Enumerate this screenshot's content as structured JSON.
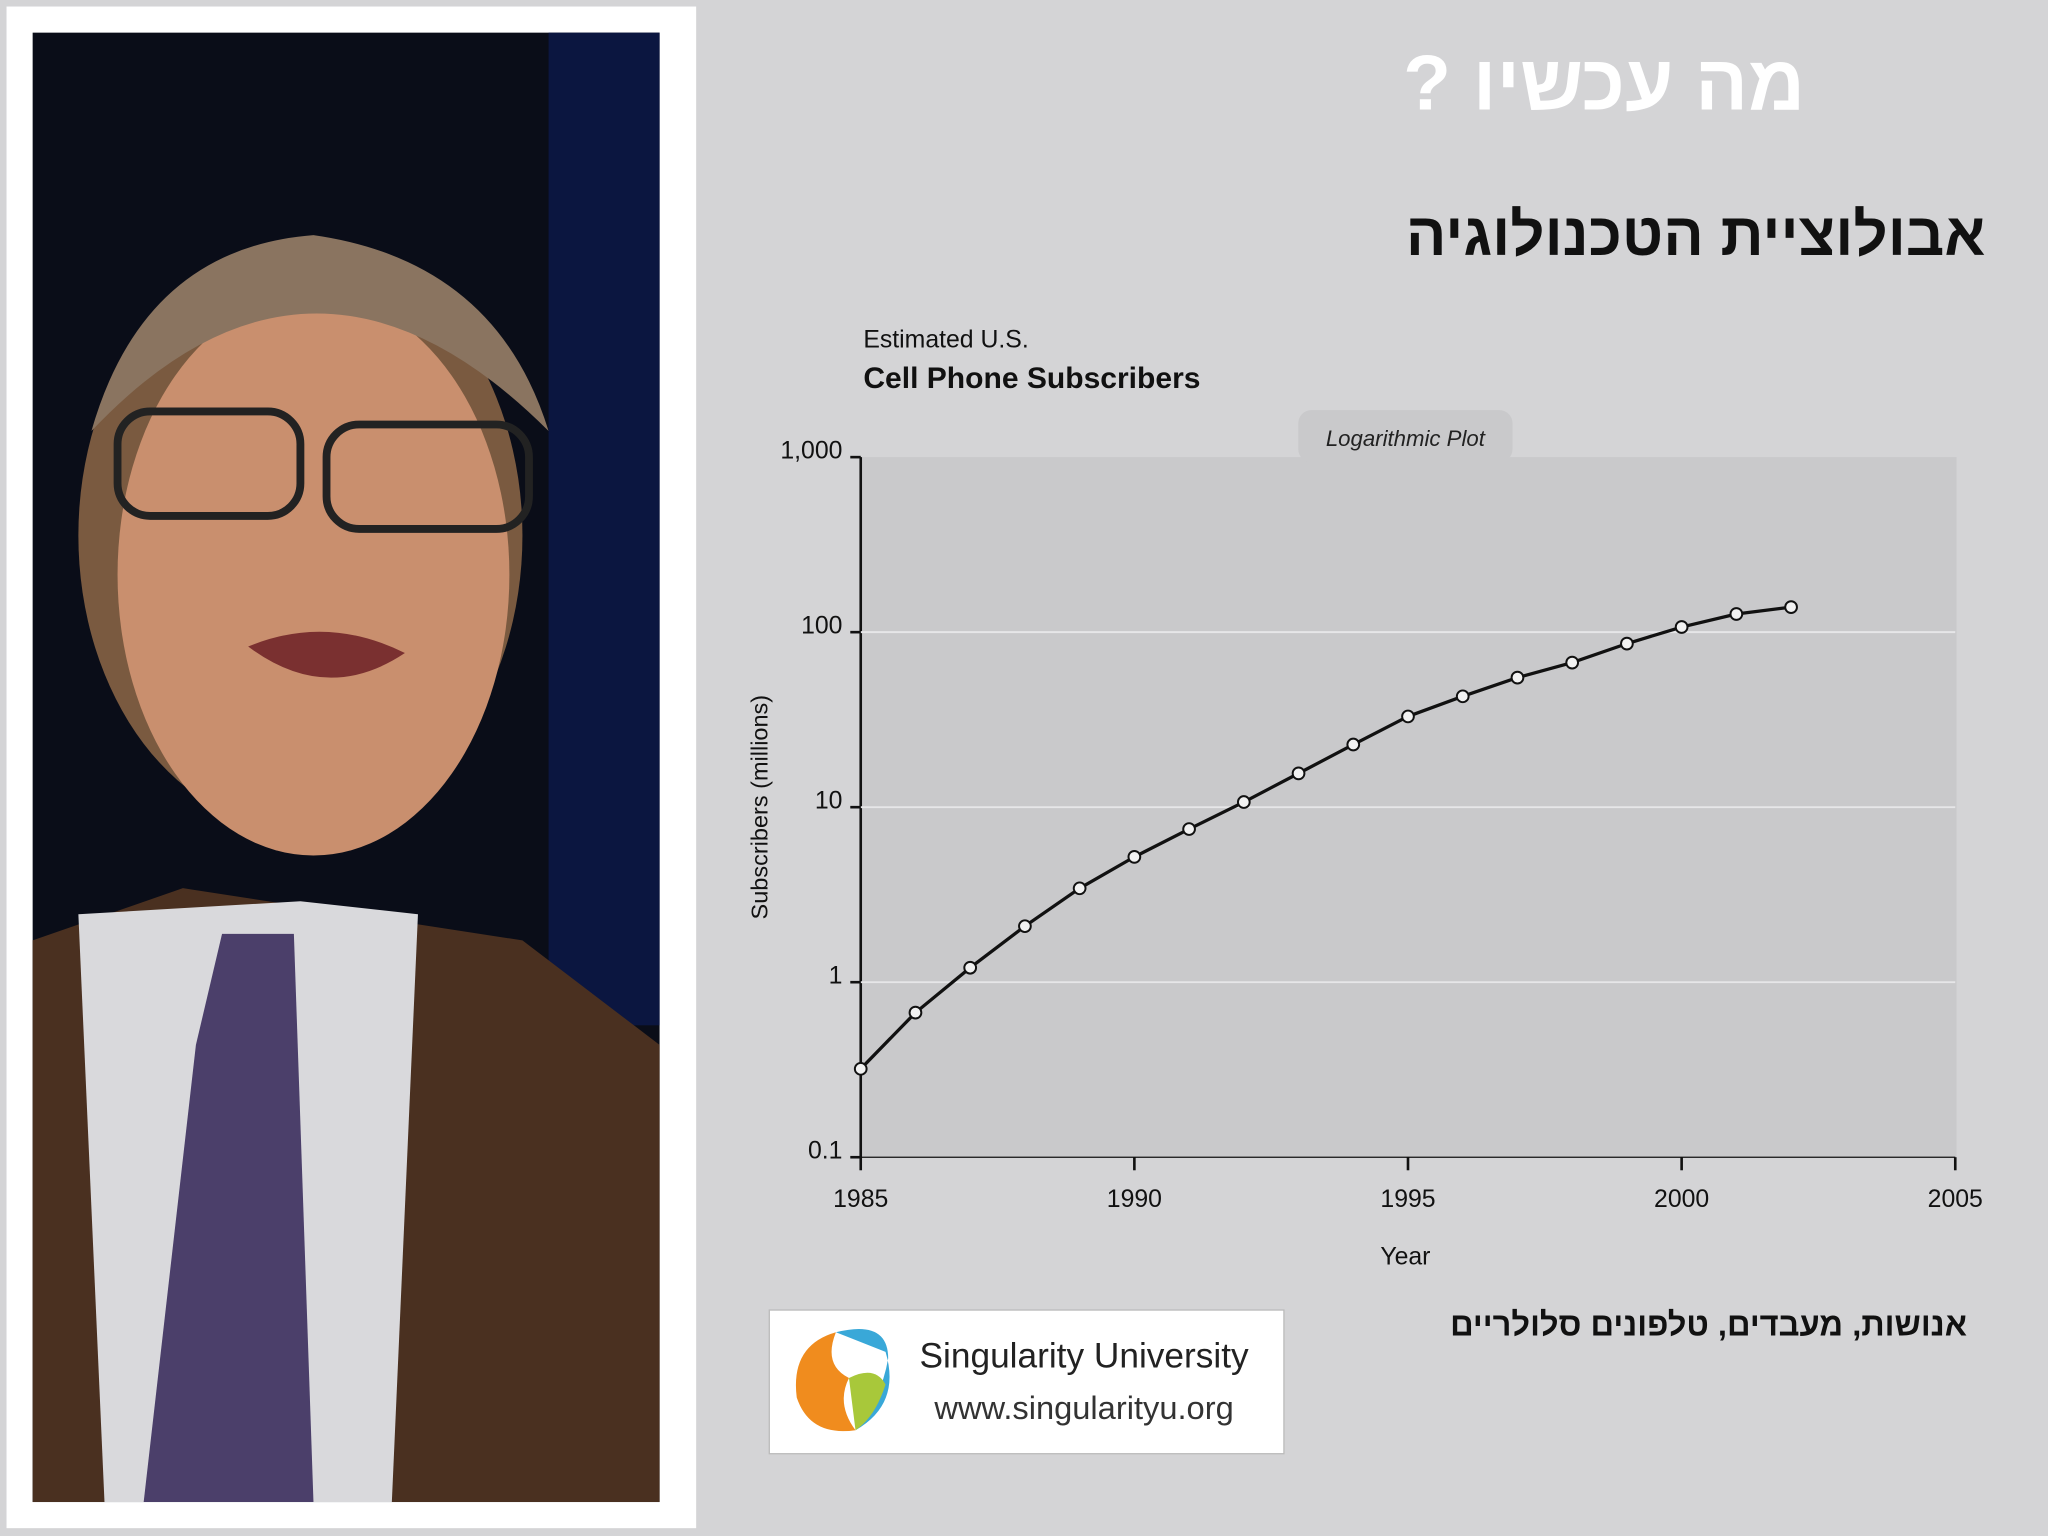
{
  "slide": {
    "heading": "מה עכשיו ?",
    "subheading": "אבולוציית הטכנולוגיה",
    "caption": "אנושות, מעבדים, טלפונים סלולריים",
    "logo": {
      "name": "Singularity University",
      "url": "www.singularityu.org"
    }
  },
  "chart_data": {
    "type": "line",
    "title": "Estimated U.S.",
    "subtitle": "Cell Phone Subscribers",
    "annotation": "Logarithmic Plot",
    "x_label": "Year",
    "y_label": "Subscribers (millions)",
    "x": [
      1985,
      1986,
      1987,
      1988,
      1989,
      1990,
      1991,
      1992,
      1993,
      1994,
      1995,
      1996,
      1997,
      1998,
      1999,
      2000,
      2001,
      2002
    ],
    "series": [
      {
        "name": "Subscribers",
        "color": "#111111",
        "values": [
          0.32,
          0.67,
          1.21,
          2.09,
          3.44,
          5.2,
          7.5,
          10.7,
          15.6,
          22.8,
          33,
          43,
          55,
          67,
          86,
          107,
          127,
          139
        ]
      }
    ],
    "xlim": [
      1985,
      2005
    ],
    "xticks": [
      1985,
      1990,
      1995,
      2000,
      2005
    ],
    "ylim": [
      0.1,
      1000
    ],
    "yticks": [
      0.1,
      1,
      10,
      100,
      {
        "value": 1000,
        "label": "1,000"
      }
    ],
    "log_y": true,
    "grid": true
  }
}
